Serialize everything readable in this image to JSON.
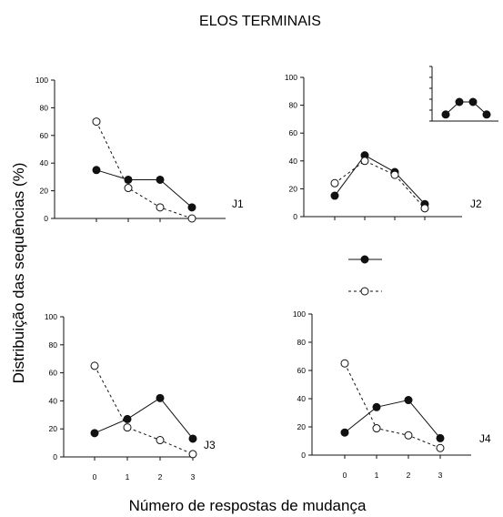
{
  "chart_data": {
    "title": "ELOS TERMINAIS",
    "ylabel": "Distribuição das sequências (%)",
    "xlabel": "Número de respostas de mudança",
    "legend": {
      "placement": "center",
      "entries": [
        {
          "marker": "filled",
          "line": "solid",
          "label": ""
        },
        {
          "marker": "open",
          "line": "dashed",
          "label": ""
        }
      ]
    },
    "panels": [
      {
        "type": "line",
        "label": "J1",
        "x": [
          0,
          1,
          2,
          3
        ],
        "show_x_ticks": false,
        "ylim": [
          0,
          100
        ],
        "yticks": [
          "0",
          "20",
          "40",
          "60",
          "80",
          "100"
        ],
        "series": [
          {
            "style": "filled-solid",
            "values": [
              35,
              28,
              28,
              8
            ]
          },
          {
            "style": "open-dashed",
            "values": [
              70,
              22,
              8,
              0
            ]
          }
        ]
      },
      {
        "type": "line",
        "label": "J2",
        "x": [
          0,
          1,
          2,
          3
        ],
        "show_x_ticks": false,
        "ylim": [
          0,
          100
        ],
        "yticks": [
          "0",
          "20",
          "40",
          "60",
          "80",
          "100"
        ],
        "series": [
          {
            "style": "filled-solid",
            "values": [
              15,
              44,
              32,
              9
            ]
          },
          {
            "style": "open-dashed",
            "values": [
              24,
              40,
              30,
              6
            ]
          }
        ],
        "inset": {
          "x": [
            0,
            1,
            2,
            3
          ],
          "ylim": [
            0,
            100
          ],
          "values": [
            12,
            35,
            35,
            12
          ],
          "style": "filled-solid"
        }
      },
      {
        "type": "line",
        "label": "J3",
        "x": [
          0,
          1,
          2,
          3
        ],
        "xticks": [
          "0",
          "1",
          "2",
          "3"
        ],
        "ylim": [
          0,
          100
        ],
        "yticks": [
          "0",
          "20",
          "40",
          "60",
          "80",
          "100"
        ],
        "series": [
          {
            "style": "filled-solid",
            "values": [
              17,
              27,
              42,
              13
            ]
          },
          {
            "style": "open-dashed",
            "values": [
              65,
              21,
              12,
              2
            ]
          }
        ]
      },
      {
        "type": "line",
        "label": "J4",
        "x": [
          0,
          1,
          2,
          3
        ],
        "xticks": [
          "0",
          "1",
          "2",
          "3"
        ],
        "ylim": [
          0,
          100
        ],
        "yticks": [
          "0",
          "20",
          "40",
          "60",
          "80",
          "100"
        ],
        "series": [
          {
            "style": "filled-solid",
            "values": [
              16,
              34,
              39,
              12
            ]
          },
          {
            "style": "open-dashed",
            "values": [
              65,
              19,
              14,
              5
            ]
          }
        ]
      }
    ]
  }
}
